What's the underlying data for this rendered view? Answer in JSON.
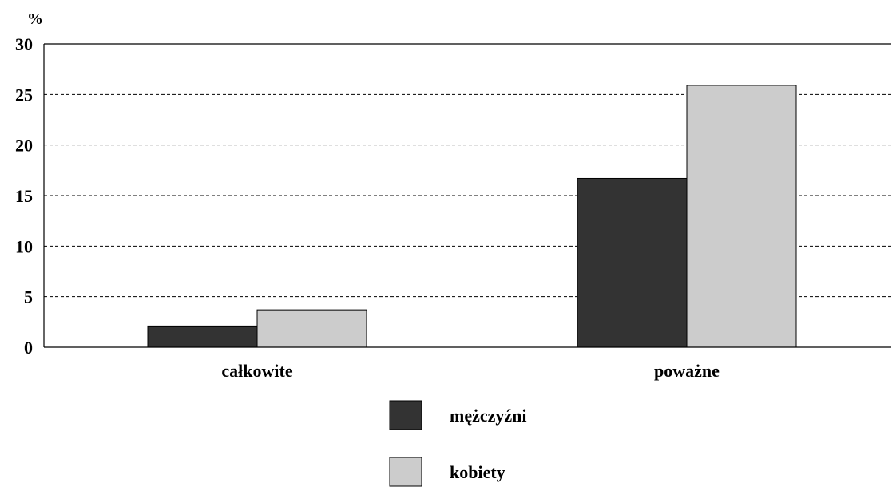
{
  "chart_data": {
    "type": "bar",
    "unit_label": "%",
    "categories": [
      "całkowite",
      "poważne"
    ],
    "series": [
      {
        "name": "mężczyźni",
        "values": [
          2.1,
          16.7
        ],
        "color": "#333333"
      },
      {
        "name": "kobiety",
        "values": [
          3.7,
          25.9
        ],
        "color": "#cccccc"
      }
    ],
    "ylim": [
      0,
      30
    ],
    "yticks": [
      0,
      5,
      10,
      15,
      20,
      25,
      30
    ],
    "grid": true,
    "legend_position": "bottom-center"
  }
}
